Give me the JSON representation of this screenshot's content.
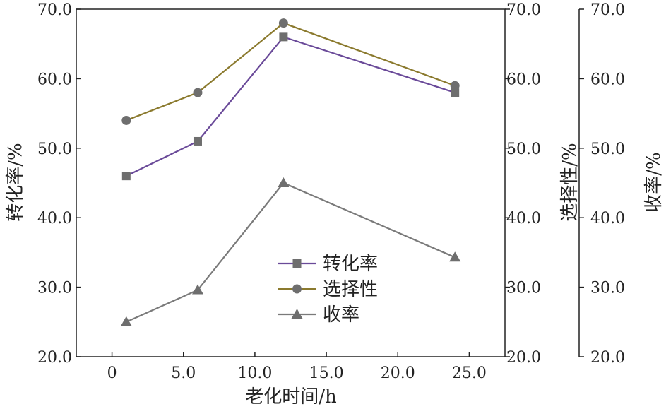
{
  "chart_data": {
    "type": "line",
    "x": [
      1,
      6,
      12,
      24
    ],
    "series": [
      {
        "name": "转化率",
        "values": [
          46,
          51,
          66,
          58
        ],
        "color": "#6a4a99",
        "marker": "square"
      },
      {
        "name": "选择性",
        "values": [
          54,
          58,
          68,
          59
        ],
        "color": "#8b7a2e",
        "marker": "circle"
      },
      {
        "name": "收率",
        "values": [
          25,
          29.6,
          45,
          34.3
        ],
        "color": "#7a7a7a",
        "marker": "triangle"
      }
    ],
    "xlabel": "老化时间/h",
    "ylabel_left": "转化率/%",
    "ylabel_right1": "选择性/%",
    "ylabel_right2": "收率/%",
    "xlim": [
      -2.5,
      27.5
    ],
    "ylim": [
      20,
      70
    ],
    "xticks": [
      "0",
      "5.0",
      "10.0",
      "15.0",
      "20.0",
      "25.0"
    ],
    "xtick_values": [
      0,
      5,
      10,
      15,
      20,
      25
    ],
    "yticks": [
      "20.0",
      "30.0",
      "40.0",
      "50.0",
      "60.0",
      "70.0"
    ],
    "ytick_values": [
      20,
      30,
      40,
      50,
      60,
      70
    ],
    "marker_color": "#6e6e6e",
    "legend_position": "center"
  }
}
